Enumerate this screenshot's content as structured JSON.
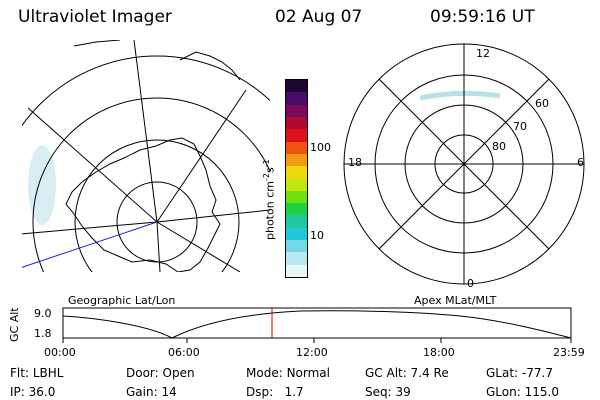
{
  "header": {
    "title": "Ultraviolet Imager",
    "date": "02 Aug 07",
    "time": "09:59:16 UT"
  },
  "colorbar": {
    "label": "photon cm",
    "exp1": "-2",
    "mid": "s",
    "exp2": "-1",
    "ticks": [
      "100",
      "10"
    ],
    "colors": [
      "#1a0630",
      "#4a0a6a",
      "#7a0a5a",
      "#b00a30",
      "#e0101a",
      "#f05010",
      "#f59a10",
      "#f0d810",
      "#c0e810",
      "#70e010",
      "#20d040",
      "#20c8a0",
      "#20c8d8",
      "#70d8e8",
      "#b8e8f0",
      "#e8f6f8"
    ]
  },
  "left_panel": {
    "caption": "Geographic Lat/Lon"
  },
  "right_panel": {
    "caption": "Apex MLat/MLT",
    "mlt_labels": [
      "12",
      "18",
      "6",
      "0"
    ],
    "mlat_labels": [
      "60",
      "70",
      "80"
    ]
  },
  "altitude_plot": {
    "ylabel": "GC Alt",
    "yticks": [
      "9.0",
      "1.8"
    ],
    "xticks": [
      "00:00",
      "06:00",
      "12:00",
      "18:00",
      "23:59"
    ],
    "current_time_marker_color": "#e00000"
  },
  "info": {
    "filter_label": "Flt:",
    "filter_value": "LBHL",
    "ip_label": "IP:",
    "ip_value": "36.0",
    "door_label": "Door:",
    "door_value": "Open",
    "gain_label": "Gain:",
    "gain_value": "14",
    "mode_label": "Mode:",
    "mode_value": "Normal",
    "dsp_label": "Dsp:",
    "dsp_value": "1.7",
    "gcalt_label": "GC Alt:",
    "gcalt_value": "7.4 Re",
    "seq_label": "Seq:",
    "seq_value": "39",
    "glat_label": "GLat:",
    "glat_value": "-77.7",
    "glon_label": "GLon:",
    "glon_value": "115.0"
  }
}
